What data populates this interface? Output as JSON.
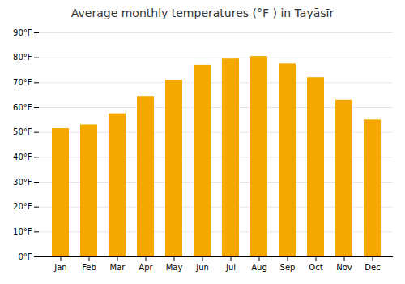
{
  "chart_data": {
    "type": "bar",
    "title": "Average monthly temperatures (°F ) in Tayāsīr",
    "categories": [
      "Jan",
      "Feb",
      "Mar",
      "Apr",
      "May",
      "Jun",
      "Jul",
      "Aug",
      "Sep",
      "Oct",
      "Nov",
      "Dec"
    ],
    "values": [
      51.5,
      53.0,
      57.5,
      64.5,
      71.0,
      77.0,
      79.5,
      80.5,
      77.5,
      72.0,
      63.0,
      55.0
    ],
    "color": "#F5A800",
    "ylim": [
      0,
      90
    ],
    "yticks": [
      {
        "value": 0,
        "label": "0°F"
      },
      {
        "value": 10,
        "label": "10°F"
      },
      {
        "value": 20,
        "label": "20°F"
      },
      {
        "value": 30,
        "label": "30°F"
      },
      {
        "value": 40,
        "label": "40°F"
      },
      {
        "value": 50,
        "label": "50°F"
      },
      {
        "value": 60,
        "label": "60°F"
      },
      {
        "value": 70,
        "label": "70°F"
      },
      {
        "value": 80,
        "label": "80°F"
      },
      {
        "value": 90,
        "label": "90°F"
      }
    ],
    "grid": true
  }
}
